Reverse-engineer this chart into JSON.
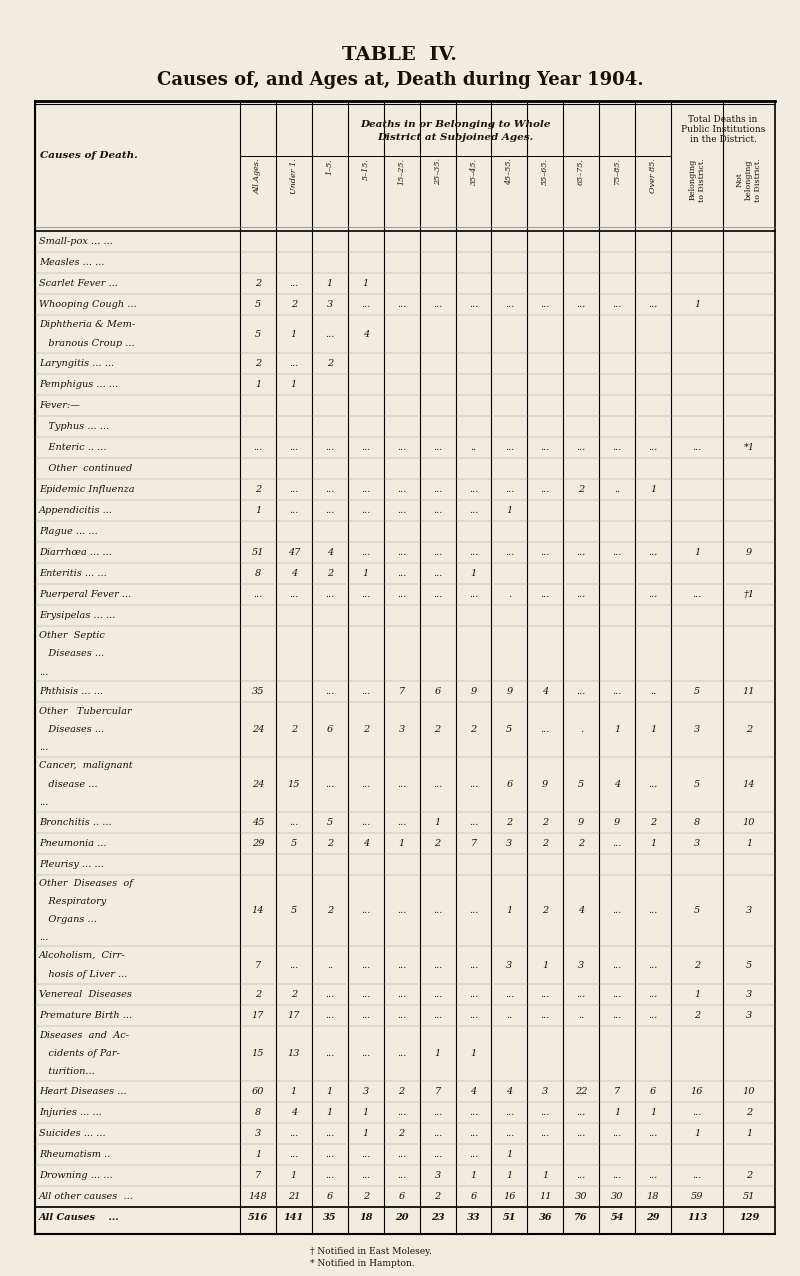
{
  "title1": "TABLE  IV.",
  "title2": "Causes of, and Ages at, Death during Year 1904.",
  "bg_color": "#f2ece0",
  "text_color": "#1a1008",
  "age_cols": [
    "All Ages.",
    "Under 1.",
    "1–5.",
    "5–15.",
    "15–25.",
    "25–35.",
    "35–45.",
    "45–55.",
    "55–65.",
    "65–75.",
    "75–85.",
    "Over 85."
  ],
  "right_cols": [
    "Belonging\nto District.",
    "Not\nbelonging\nto District."
  ],
  "rows": [
    {
      "cause": [
        "Small-pox ...",
        "..."
      ],
      "indent": 0,
      "data": [
        "",
        "",
        "",
        "",
        "",
        "",
        "",
        "",
        "",
        "",
        "",
        "",
        "",
        ""
      ]
    },
    {
      "cause": [
        "Measles",
        "...",
        "..."
      ],
      "indent": 0,
      "data": [
        "",
        "",
        "",
        "",
        "",
        "",
        "",
        "",
        "",
        "",
        "",
        "",
        "",
        ""
      ]
    },
    {
      "cause": [
        "Scarlet Fever",
        "..."
      ],
      "indent": 0,
      "data": [
        "2",
        "...",
        "1",
        "1",
        "",
        "",
        "",
        "",
        "",
        "",
        "",
        "",
        "",
        ""
      ]
    },
    {
      "cause": [
        "Whooping Cough ..."
      ],
      "indent": 0,
      "data": [
        "5",
        "2",
        "3",
        "...",
        "...",
        "...",
        "...",
        "...",
        "...",
        "...",
        "...",
        "...",
        "1",
        ""
      ]
    },
    {
      "cause": [
        "Diphtheria & Mem-",
        "   branous Croup ..."
      ],
      "indent": 0,
      "multiline": true,
      "data": [
        "5",
        "1",
        "...",
        "4",
        "",
        "",
        "",
        "",
        "",
        "",
        "",
        "",
        "",
        ""
      ]
    },
    {
      "cause": [
        "Laryngitis ...",
        "..."
      ],
      "indent": 0,
      "data": [
        "2",
        "...",
        "2",
        "",
        "",
        "",
        "",
        "",
        "",
        "",
        "",
        "",
        "",
        ""
      ]
    },
    {
      "cause": [
        "Pemphigus ...",
        "..."
      ],
      "indent": 0,
      "data": [
        "1",
        "1",
        "",
        "",
        "",
        "",
        "",
        "",
        "",
        "",
        "",
        "",
        "",
        ""
      ]
    },
    {
      "cause": [
        "Fever:—"
      ],
      "indent": 0,
      "data": [
        "",
        "",
        "",
        "",
        "",
        "",
        "",
        "",
        "",
        "",
        "",
        "",
        "",
        ""
      ]
    },
    {
      "cause": [
        "   Typhus ...",
        "..."
      ],
      "indent": 1,
      "data": [
        "",
        "",
        "",
        "",
        "",
        "",
        "",
        "",
        "",
        "",
        "",
        "",
        "",
        ""
      ]
    },
    {
      "cause": [
        "   Enteric ..",
        "..."
      ],
      "indent": 1,
      "data": [
        "...",
        "...",
        "...",
        "...",
        "...",
        "...",
        "..",
        "...",
        "...",
        "...",
        "...",
        "...",
        "...",
        "*1"
      ]
    },
    {
      "cause": [
        "   Other  continued"
      ],
      "indent": 1,
      "data": [
        "",
        "",
        "",
        "",
        "",
        "",
        "",
        "",
        "",
        "",
        "",
        "",
        "",
        ""
      ]
    },
    {
      "cause": [
        "Epidemic Influenza"
      ],
      "indent": 0,
      "data": [
        "2",
        "...",
        "...",
        "...",
        "...",
        "...",
        "...",
        "...",
        "...",
        "2",
        "..",
        "1",
        ""
      ]
    },
    {
      "cause": [
        "Appendicitis",
        "..."
      ],
      "indent": 0,
      "data": [
        "1",
        "...",
        "...",
        "...",
        "...",
        "...",
        "...",
        "1",
        "",
        "",
        "",
        "",
        "",
        ""
      ]
    },
    {
      "cause": [
        "Plague",
        "...",
        "..."
      ],
      "indent": 0,
      "data": [
        "",
        "",
        "",
        "",
        "",
        "",
        "",
        "",
        "",
        "",
        "",
        "",
        "",
        ""
      ]
    },
    {
      "cause": [
        "Diarrhœa",
        "...",
        "..."
      ],
      "indent": 0,
      "data": [
        "51",
        "47",
        "4",
        "...",
        "...",
        "...",
        "...",
        "...",
        "...",
        "...",
        "...",
        "...",
        "1",
        "9"
      ]
    },
    {
      "cause": [
        "Enteritis",
        "...",
        "..."
      ],
      "indent": 0,
      "data": [
        "8",
        "4",
        "2",
        "1",
        "...",
        "...",
        "1",
        "",
        "",
        "",
        "",
        "",
        "",
        ""
      ]
    },
    {
      "cause": [
        "Puerperal Fever",
        "..."
      ],
      "indent": 0,
      "data": [
        "...",
        "...",
        "...",
        "...",
        "...",
        "...",
        "...",
        ".",
        "...",
        "...",
        "",
        "...",
        "...",
        "†1"
      ]
    },
    {
      "cause": [
        "Erysipelas ...",
        "..."
      ],
      "indent": 0,
      "data": [
        "",
        "",
        "",
        "",
        "",
        "",
        "",
        "",
        "",
        "",
        "",
        "",
        "",
        ""
      ]
    },
    {
      "cause": [
        "Other  Septic",
        "   Diseases ...",
        "..."
      ],
      "indent": 0,
      "multiline": true,
      "data": [
        "",
        "",
        "",
        "",
        "",
        "",
        "",
        "",
        "",
        "",
        "",
        "",
        "",
        ""
      ]
    },
    {
      "cause": [
        "Phthisis",
        "...",
        "..."
      ],
      "indent": 0,
      "data": [
        "35",
        "",
        "...",
        "...",
        "7",
        "6",
        "9",
        "9",
        "4",
        "...",
        "...",
        "..",
        "5",
        "11"
      ]
    },
    {
      "cause": [
        "Other   Tubercular",
        "   Diseases ...",
        "..."
      ],
      "indent": 0,
      "multiline": true,
      "data": [
        "24",
        "2",
        "6",
        "2",
        "3",
        "2",
        "2",
        "5",
        "...",
        ".",
        "1",
        "1",
        "3",
        "2"
      ]
    },
    {
      "cause": [
        "Cancer,  malignant",
        "   disease ...",
        "..."
      ],
      "indent": 0,
      "multiline": true,
      "data": [
        "24",
        "15",
        "...",
        "...",
        "...",
        "...",
        "...",
        "6",
        "9",
        "5",
        "4",
        "...",
        "5",
        "14"
      ]
    },
    {
      "cause": [
        "Bronchitis ..",
        "..."
      ],
      "indent": 0,
      "data": [
        "45",
        "...",
        "5",
        "...",
        "...",
        "1",
        "...",
        "2",
        "2",
        "9",
        "9",
        "2",
        "8",
        "10"
      ]
    },
    {
      "cause": [
        "Pneumonia",
        "..."
      ],
      "indent": 0,
      "data": [
        "29",
        "5",
        "2",
        "4",
        "1",
        "2",
        "7",
        "3",
        "2",
        "2",
        "...",
        "1",
        "3",
        "1"
      ]
    },
    {
      "cause": [
        "Pleurisy",
        "...",
        "..."
      ],
      "indent": 0,
      "data": [
        "",
        "",
        "",
        "",
        "",
        "",
        "",
        "",
        "",
        "",
        "",
        "",
        "",
        ""
      ]
    },
    {
      "cause": [
        "Other  Diseases  of",
        "   Respiratory",
        "   Organs ...",
        "..."
      ],
      "indent": 0,
      "multiline": true,
      "data": [
        "14",
        "5",
        "2",
        "...",
        "...",
        "...",
        "...",
        "1",
        "2",
        "4",
        "...",
        "...",
        "5",
        "3"
      ]
    },
    {
      "cause": [
        "Alcoholism,  Cirr-",
        "   hosis of Liver ..."
      ],
      "indent": 0,
      "multiline": true,
      "data": [
        "7",
        "...",
        "..",
        "...",
        "...",
        "...",
        "...",
        "3",
        "1",
        "3",
        "...",
        "...",
        "2",
        "5"
      ]
    },
    {
      "cause": [
        "Venereal  Diseases"
      ],
      "indent": 0,
      "data": [
        "2",
        "2",
        "...",
        "...",
        "...",
        "...",
        "...",
        "...",
        "...",
        "...",
        "...",
        "...",
        "1",
        "3"
      ]
    },
    {
      "cause": [
        "Premature Birth ..."
      ],
      "indent": 0,
      "data": [
        "17",
        "17",
        "...",
        "...",
        "...",
        "...",
        "...",
        "..",
        "...",
        "..",
        "...",
        "...",
        "2",
        "3"
      ]
    },
    {
      "cause": [
        "Diseases  and  Ac-",
        "   cidents of Par-",
        "   turition..."
      ],
      "indent": 0,
      "multiline": true,
      "data": [
        "15",
        "13",
        "...",
        "...",
        "...",
        "1",
        "1",
        "",
        "",
        "",
        "",
        "",
        "",
        ""
      ]
    },
    {
      "cause": [
        "Heart Diseases",
        "..."
      ],
      "indent": 0,
      "data": [
        "60",
        "1",
        "1",
        "3",
        "2",
        "7",
        "4",
        "4",
        "3",
        "22",
        "7",
        "6",
        "16",
        "10"
      ]
    },
    {
      "cause": [
        "Injuries",
        "...",
        "..."
      ],
      "indent": 0,
      "data": [
        "8",
        "4",
        "1",
        "1",
        "...",
        "...",
        "...",
        "...",
        "...",
        "...",
        "1",
        "1",
        "...",
        "2"
      ]
    },
    {
      "cause": [
        "Suicides",
        "...",
        "..."
      ],
      "indent": 0,
      "data": [
        "3",
        "...",
        "...",
        "1",
        "2",
        "...",
        "...",
        "...",
        "...",
        "...",
        "...",
        "...",
        "1",
        "1"
      ]
    },
    {
      "cause": [
        "Rheumatism",
        ".."
      ],
      "indent": 0,
      "data": [
        "1",
        "...",
        "...",
        "...",
        "...",
        "...",
        "...",
        "1",
        "",
        "",
        "",
        "",
        "",
        ""
      ]
    },
    {
      "cause": [
        "Drowning ...",
        "..."
      ],
      "indent": 0,
      "data": [
        "7",
        "1",
        "...",
        "...",
        "...",
        "3",
        "1",
        "1",
        "1",
        "...",
        "...",
        "...",
        "...",
        "2"
      ]
    },
    {
      "cause": [
        "All other causes  ..."
      ],
      "indent": 0,
      "data": [
        "148",
        "21",
        "6",
        "2",
        "6",
        "2",
        "6",
        "16",
        "11",
        "30",
        "30",
        "18",
        "59",
        "51"
      ]
    },
    {
      "cause": [
        "All Causes    ..."
      ],
      "indent": 0,
      "bold": true,
      "data": [
        "516",
        "141",
        "35",
        "18",
        "20",
        "23",
        "33",
        "51",
        "36",
        "76",
        "54",
        "29",
        "113",
        "129"
      ]
    }
  ],
  "footnote1": "† Notified in East Molesey.",
  "footnote2": "* Notified in Hampton."
}
